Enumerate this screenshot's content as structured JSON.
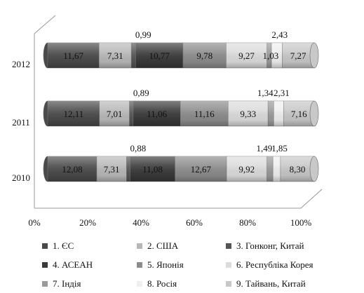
{
  "chart_data": {
    "type": "bar",
    "stacked": "percent",
    "orientation": "horizontal",
    "categories": [
      "2012",
      "2011",
      "2010"
    ],
    "x_ticks": [
      "0%",
      "20%",
      "40%",
      "60%",
      "80%",
      "100%"
    ],
    "xlim": [
      0,
      100
    ],
    "legend_position": "bottom",
    "series": [
      {
        "name": "1. ЄС",
        "color": "#4a4a4a",
        "values": [
          11.67,
          12.11,
          12.08
        ],
        "labels": [
          "11,67",
          "12,11",
          "12,08"
        ]
      },
      {
        "name": "2. США",
        "color": "#b8b8b8",
        "values": [
          7.31,
          7.01,
          7.31
        ],
        "labels": [
          "7,31",
          "7,01",
          "7,31"
        ]
      },
      {
        "name": "3. Гонконг, Китай",
        "color": "#555555",
        "values": [
          0.99,
          0.89,
          0.88
        ],
        "labels": [
          "0,99",
          "0,89",
          "0,88"
        ]
      },
      {
        "name": "4. АСЕАН",
        "color": "#3a3a3a",
        "values": [
          10.77,
          11.06,
          11.08
        ],
        "labels": [
          "10,77",
          "11,06",
          "11,08"
        ]
      },
      {
        "name": "5. Японія",
        "color": "#8c8c8c",
        "values": [
          9.78,
          11.16,
          12.67
        ],
        "labels": [
          "9,78",
          "11,16",
          "12,67"
        ]
      },
      {
        "name": "6. Республіка Корея",
        "color": "#dcdcdc",
        "values": [
          9.27,
          9.33,
          9.92
        ],
        "labels": [
          "9,27",
          "9,33",
          "9,92"
        ]
      },
      {
        "name": "7. Індія",
        "color": "#9a9a9a",
        "values": [
          1.03,
          1.34,
          1.49
        ],
        "labels": [
          "1,03",
          "1,34",
          "1,49"
        ]
      },
      {
        "name": "8. Росія",
        "color": "#efefef",
        "values": [
          2.43,
          2.31,
          1.85
        ],
        "labels": [
          "2,43",
          "2,31",
          "1,85"
        ]
      },
      {
        "name": "9. Тайвань, Китай",
        "color": "#c8c8c8",
        "values": [
          7.27,
          7.16,
          8.3
        ],
        "labels": [
          "7,27",
          "7,16",
          "8,30"
        ]
      }
    ]
  }
}
